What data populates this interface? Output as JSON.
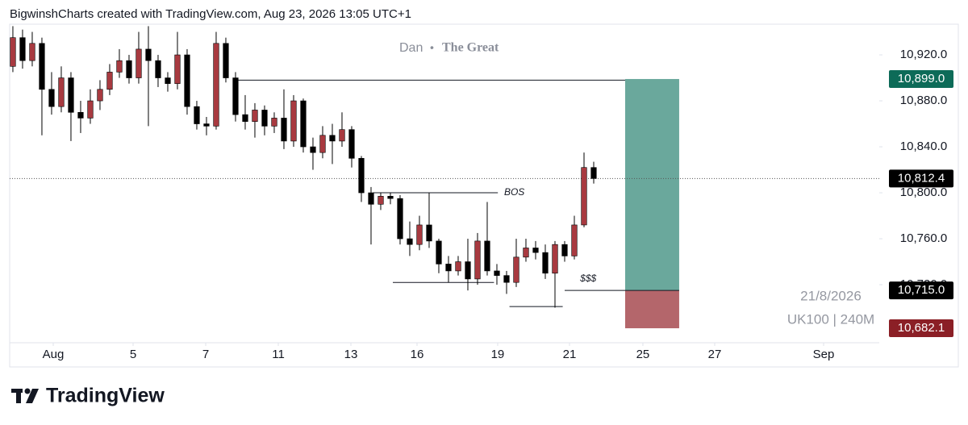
{
  "chart_data": {
    "type": "candlestick",
    "header": "BigwinshCharts created with TradingView.com, Aug 23, 2026 13:05 UTC+1",
    "watermark": [
      "Dan",
      "•",
      "The Great"
    ],
    "symbol_date": "21/8/2026",
    "symbol": "UK100 | 240M",
    "up_color": "#a83a40",
    "down_color": "#000000",
    "x": [
      0,
      1,
      2,
      3,
      4,
      5,
      6,
      7,
      8,
      9,
      10,
      11,
      12,
      13,
      14,
      15,
      16,
      17,
      18,
      19,
      20,
      21,
      22,
      23,
      24,
      25,
      26,
      27,
      28,
      29,
      30,
      31,
      32,
      33,
      34,
      35,
      36,
      37,
      38,
      39,
      40,
      41,
      42,
      43,
      44,
      45,
      46,
      47,
      48,
      49,
      50,
      51,
      52,
      53,
      54,
      55,
      56,
      57,
      58,
      59,
      60
    ],
    "ohlc": [
      [
        10910,
        10945,
        10905,
        10935
      ],
      [
        10935,
        10942,
        10908,
        10915
      ],
      [
        10915,
        10940,
        10910,
        10930
      ],
      [
        10930,
        10935,
        10850,
        10890
      ],
      [
        10890,
        10905,
        10868,
        10875
      ],
      [
        10875,
        10910,
        10870,
        10900
      ],
      [
        10900,
        10905,
        10845,
        10870
      ],
      [
        10870,
        10880,
        10852,
        10865
      ],
      [
        10865,
        10890,
        10860,
        10880
      ],
      [
        10880,
        10898,
        10872,
        10890
      ],
      [
        10890,
        10912,
        10885,
        10905
      ],
      [
        10905,
        10925,
        10900,
        10915
      ],
      [
        10915,
        10920,
        10895,
        10900
      ],
      [
        10900,
        10940,
        10895,
        10925
      ],
      [
        10925,
        10945,
        10858,
        10915
      ],
      [
        10915,
        10920,
        10892,
        10900
      ],
      [
        10900,
        10905,
        10888,
        10895
      ],
      [
        10895,
        10940,
        10890,
        10920
      ],
      [
        10920,
        10925,
        10868,
        10875
      ],
      [
        10875,
        10880,
        10855,
        10860
      ],
      [
        10860,
        10866,
        10850,
        10858
      ],
      [
        10858,
        10940,
        10855,
        10930
      ],
      [
        10930,
        10935,
        10896,
        10900
      ],
      [
        10900,
        10905,
        10862,
        10868
      ],
      [
        10868,
        10885,
        10855,
        10862
      ],
      [
        10862,
        10878,
        10848,
        10872
      ],
      [
        10872,
        10876,
        10850,
        10858
      ],
      [
        10858,
        10870,
        10852,
        10865
      ],
      [
        10865,
        10890,
        10838,
        10845
      ],
      [
        10845,
        10885,
        10840,
        10880
      ],
      [
        10880,
        10882,
        10835,
        10840
      ],
      [
        10840,
        10848,
        10820,
        10835
      ],
      [
        10835,
        10858,
        10830,
        10850
      ],
      [
        10850,
        10860,
        10825,
        10845
      ],
      [
        10845,
        10870,
        10840,
        10855
      ],
      [
        10855,
        10858,
        10822,
        10830
      ],
      [
        10830,
        10832,
        10792,
        10800
      ],
      [
        10800,
        10805,
        10755,
        10790
      ],
      [
        10790,
        10800,
        10785,
        10797
      ],
      [
        10797,
        10800,
        10790,
        10795
      ],
      [
        10795,
        10798,
        10755,
        10760
      ],
      [
        10760,
        10775,
        10745,
        10755
      ],
      [
        10755,
        10780,
        10750,
        10772
      ],
      [
        10772,
        10800,
        10752,
        10758
      ],
      [
        10758,
        10760,
        10730,
        10738
      ],
      [
        10738,
        10745,
        10722,
        10732
      ],
      [
        10732,
        10745,
        10728,
        10740
      ],
      [
        10740,
        10760,
        10715,
        10725
      ],
      [
        10725,
        10765,
        10720,
        10758
      ],
      [
        10758,
        10792,
        10728,
        10732
      ],
      [
        10732,
        10738,
        10720,
        10728
      ],
      [
        10728,
        10732,
        10712,
        10722
      ],
      [
        10722,
        10760,
        10718,
        10744
      ],
      [
        10744,
        10760,
        10740,
        10752
      ],
      [
        10752,
        10758,
        10742,
        10748
      ],
      [
        10748,
        10755,
        10725,
        10730
      ],
      [
        10730,
        10758,
        10700,
        10755
      ],
      [
        10755,
        10758,
        10740,
        10745
      ],
      [
        10745,
        10780,
        10742,
        10772
      ],
      [
        10772,
        10835,
        10770,
        10822
      ],
      [
        10822,
        10827,
        10808,
        10812.4
      ]
    ],
    "xlim": [
      -0.33,
      89.5
    ],
    "xticks": [
      {
        "value": 4.17,
        "label": "Aug"
      },
      {
        "value": 12.42,
        "label": "5"
      },
      {
        "value": 19.92,
        "label": "7"
      },
      {
        "value": 27.42,
        "label": "11"
      },
      {
        "value": 34.92,
        "label": "13"
      },
      {
        "value": 41.75,
        "label": "16"
      },
      {
        "value": 50.08,
        "label": "19"
      },
      {
        "value": 57.5,
        "label": "21"
      },
      {
        "value": 65.08,
        "label": "25"
      },
      {
        "value": 72.5,
        "label": "27"
      },
      {
        "value": 83.75,
        "label": "Sep"
      }
    ],
    "ylim": [
      10669.5,
      10946.7
    ],
    "yticks": [
      {
        "value": 10720,
        "label": "10,720.0"
      },
      {
        "value": 10760,
        "label": "10,760.0"
      },
      {
        "value": 10800,
        "label": "10,800.0"
      },
      {
        "value": 10840,
        "label": "10,840.0"
      },
      {
        "value": 10880,
        "label": "10,880.0"
      },
      {
        "value": 10920,
        "label": "10,920.0"
      }
    ],
    "lines": [
      {
        "price": 10898,
        "x0": 22.8,
        "x1": 63.25
      },
      {
        "price": 10800,
        "x0": 37.2,
        "x1": 50.1
      },
      {
        "price": 10722,
        "x0": 39.25,
        "x1": 49.7
      },
      {
        "price": 10701,
        "x0": 51.3,
        "x1": 56.8
      },
      {
        "price": 10715,
        "x0": 57,
        "x1": 68.83
      }
    ],
    "annotations": [
      {
        "text": "BOS",
        "x": 50.75,
        "price": 10800
      },
      {
        "text": "$$$",
        "x": 58.6,
        "price": 10725
      }
    ],
    "position": {
      "target": 10899,
      "entry": 10715,
      "stop": 10682.1,
      "x0": 63.25,
      "x1": 68.83,
      "profit_color": "#6aa89c",
      "loss_color": "#b4666b"
    },
    "last_price": 10812.4,
    "price_labels": [
      {
        "value": 10899,
        "label": "10,899.0",
        "color": "#0d6b58"
      },
      {
        "value": 10812.4,
        "label": "10,812.4",
        "color": "#000000"
      },
      {
        "value": 10715,
        "label": "10,715.0",
        "color": "#000000"
      },
      {
        "value": 10682.1,
        "label": "10,682.1",
        "color": "#8b1f26"
      }
    ]
  },
  "footer": {
    "brand": "TradingView"
  }
}
